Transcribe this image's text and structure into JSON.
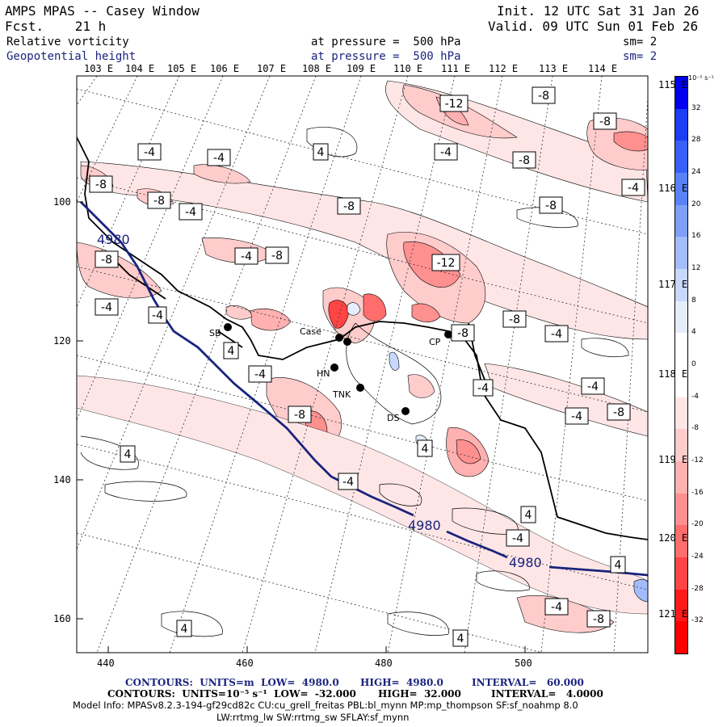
{
  "header": {
    "title": "AMPS MPAS -- Casey Window",
    "init": "Init. 12 UTC Sat 31 Jan 26",
    "fcst": "Fcst.    21 h",
    "valid": "Valid. 09 UTC Sun 01 Feb 26",
    "field1": {
      "name": "Relative vorticity",
      "pressure": "at pressure =  500 hPa",
      "sm": "sm= 2"
    },
    "field2": {
      "name": "Geopotential height",
      "pressure": "at pressure =  500 hPa",
      "sm": "sm= 2"
    }
  },
  "top_lon_labels": [
    "103 E",
    "104 E",
    "105 E",
    "106 E",
    "107 E",
    "108 E",
    "109 E",
    "110 E",
    "111 E",
    "112 E",
    "113 E",
    "114 E"
  ],
  "right_lon_labels": [
    "115 E",
    "116 E",
    "117 E",
    "118 E",
    "119 E",
    "120 E",
    "121 E"
  ],
  "x_axis": [
    "440",
    "460",
    "480",
    "500"
  ],
  "y_axis": [
    "100",
    "120",
    "140",
    "160"
  ],
  "colorbar": {
    "unit": "10⁻⁵ s⁻¹",
    "ticks": [
      "32",
      "28",
      "24",
      "20",
      "16",
      "12",
      "8",
      "4",
      "0",
      "-4",
      "-8",
      "-12",
      "-16",
      "-20",
      "-24",
      "-28",
      "-32"
    ],
    "colors": [
      "#0000ee",
      "#1a3df5",
      "#3660f6",
      "#5a82f8",
      "#7e9ffa",
      "#a3bcfb",
      "#c8d8fd",
      "#e6eefe",
      "#ffffff",
      "#ffffff",
      "#ffe6e6",
      "#ffcccc",
      "#ffb0b0",
      "#ff9090",
      "#ff6d6d",
      "#ff4444",
      "#ff1a1a",
      "#ff0000"
    ]
  },
  "stations": [
    "SB",
    "Case",
    "HN",
    "TNK",
    "DS",
    "CP"
  ],
  "contour_labels": [
    "-12",
    "-8",
    "-4",
    "4"
  ],
  "height_labels": [
    "4980",
    "4980",
    "4980"
  ],
  "footer": {
    "line1": {
      "a": "CONTOURS:  UNITS=m  LOW=  4980.0",
      "b": "HIGH=  4980.0",
      "c": "INTERVAL=   60.000"
    },
    "line2": {
      "a": "CONTOURS:  UNITS=10⁻⁵ s⁻¹  LOW=  -32.000",
      "b": "HIGH=  32.000",
      "c": "INTERVAL=   4.0000"
    },
    "line3": "Model Info: MPASv8.2.3-194-gf29cd82c CU:cu_grell_freitas PBL:bl_mynn MP:mp_thompson SF:sf_noahmp 8.0",
    "line4": "LW:rrtmg_lw SW:rrtmg_sw SFLAY:sf_mynn"
  }
}
